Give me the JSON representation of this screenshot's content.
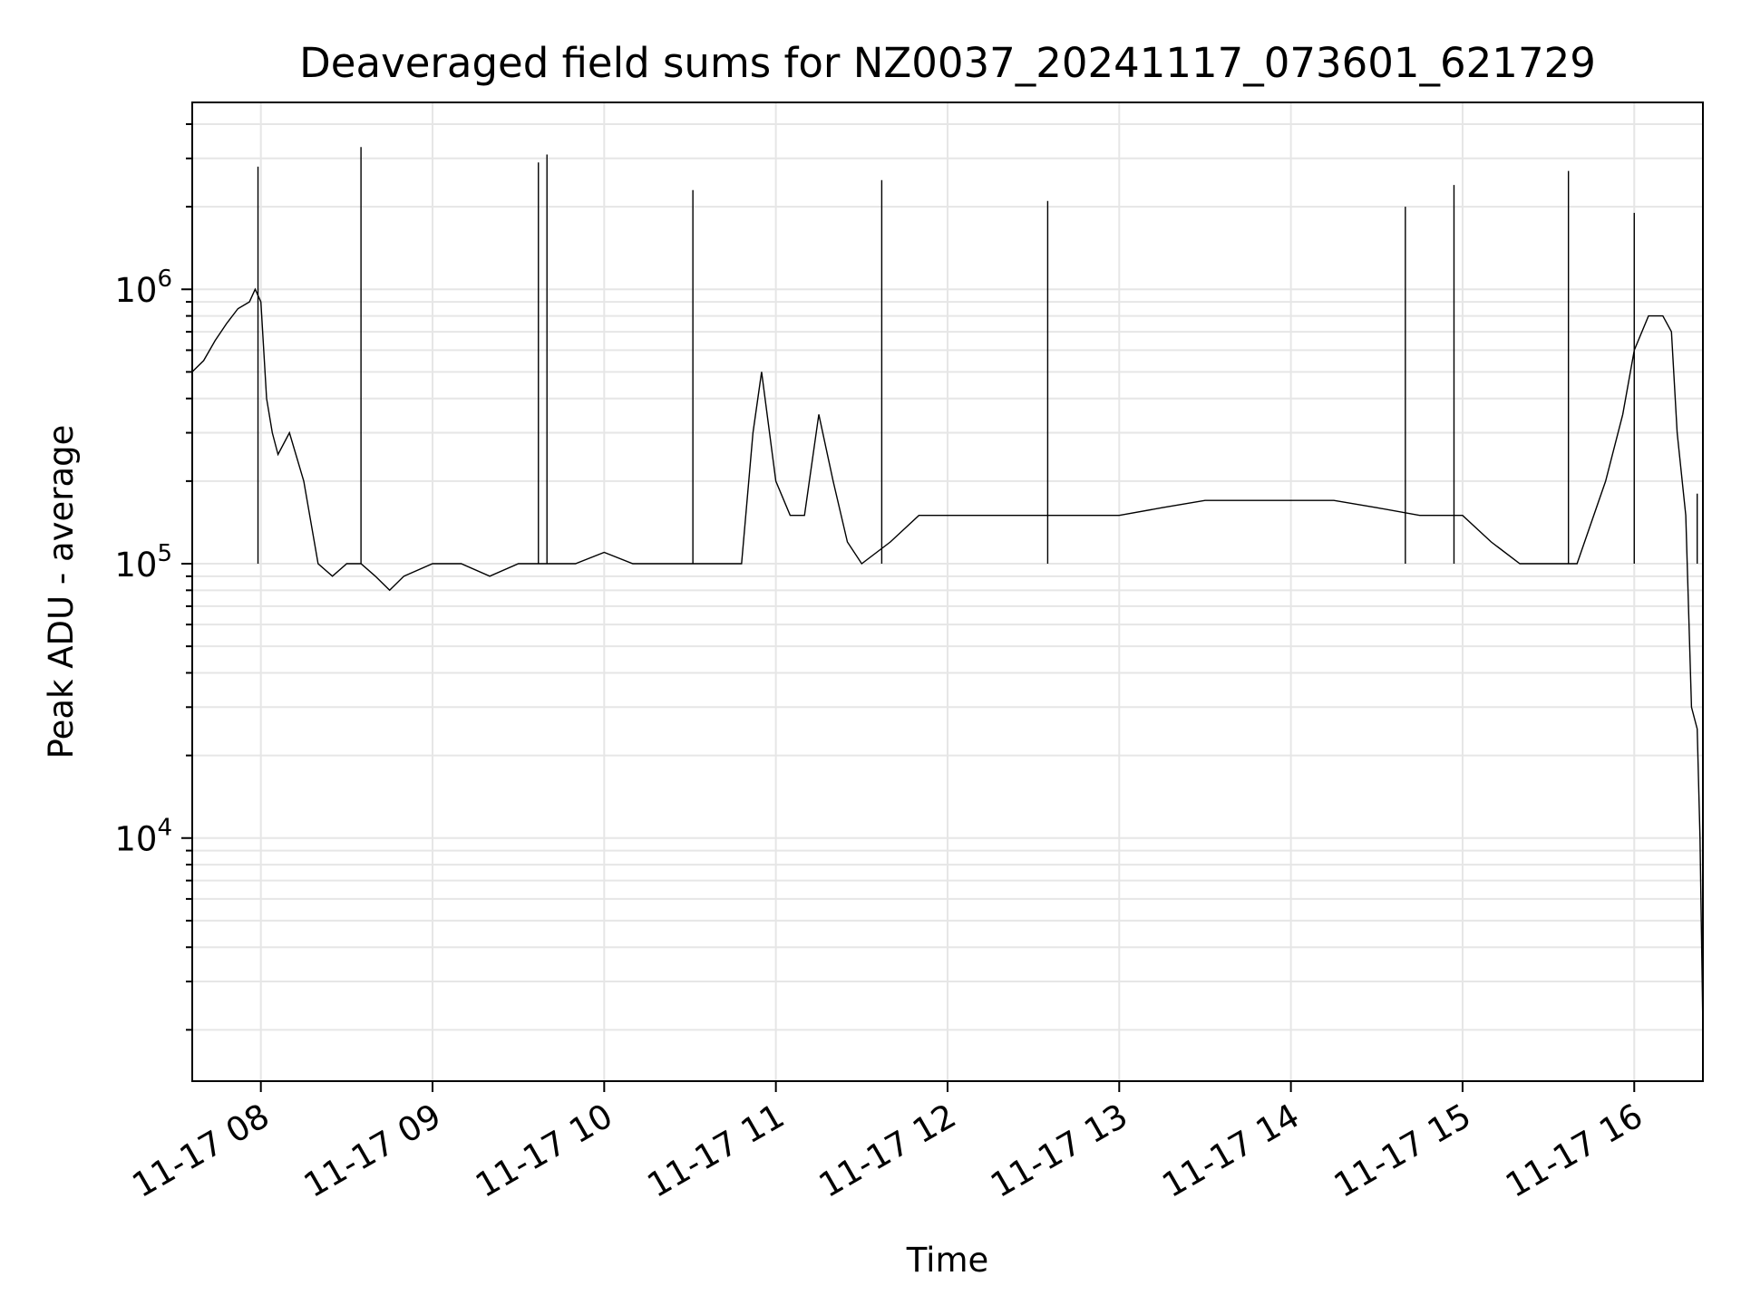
{
  "chart_data": {
    "type": "line",
    "title": "Deaveraged field sums for NZ0037_20241117_073601_621729",
    "xlabel": "Time",
    "ylabel": "Peak ADU - average",
    "yscale": "log",
    "ylim": [
      1300,
      4800000
    ],
    "xlim": [
      "2024-11-17T07:36:01",
      "2024-11-17T16:24:00"
    ],
    "grid": true,
    "legend": "none",
    "line_color": "#000000",
    "x_ticks": [
      "11-17 08",
      "11-17 09",
      "11-17 10",
      "11-17 11",
      "11-17 12",
      "11-17 13",
      "11-17 14",
      "11-17 15",
      "11-17 16"
    ],
    "y_ticks": [
      {
        "base": "10",
        "exp": "4",
        "value": 10000
      },
      {
        "base": "10",
        "exp": "5",
        "value": 100000
      },
      {
        "base": "10",
        "exp": "6",
        "value": 1000000
      }
    ],
    "series": [
      {
        "x": [
          "2024-11-17T07:36",
          "2024-11-17T07:40",
          "2024-11-17T07:44",
          "2024-11-17T07:48",
          "2024-11-17T07:52",
          "2024-11-17T07:56",
          "2024-11-17T07:58",
          "2024-11-17T08:00",
          "2024-11-17T08:02",
          "2024-11-17T08:04",
          "2024-11-17T08:06",
          "2024-11-17T08:10",
          "2024-11-17T08:15",
          "2024-11-17T08:20",
          "2024-11-17T08:25",
          "2024-11-17T08:30",
          "2024-11-17T08:35",
          "2024-11-17T08:40",
          "2024-11-17T08:45",
          "2024-11-17T08:50",
          "2024-11-17T09:00",
          "2024-11-17T09:10",
          "2024-11-17T09:20",
          "2024-11-17T09:30",
          "2024-11-17T09:40",
          "2024-11-17T09:50",
          "2024-11-17T10:00",
          "2024-11-17T10:10",
          "2024-11-17T10:20",
          "2024-11-17T10:30",
          "2024-11-17T10:40",
          "2024-11-17T10:48",
          "2024-11-17T10:52",
          "2024-11-17T10:55",
          "2024-11-17T11:00",
          "2024-11-17T11:05",
          "2024-11-17T11:10",
          "2024-11-17T11:15",
          "2024-11-17T11:20",
          "2024-11-17T11:25",
          "2024-11-17T11:30",
          "2024-11-17T11:40",
          "2024-11-17T11:50",
          "2024-11-17T12:00",
          "2024-11-17T12:15",
          "2024-11-17T12:30",
          "2024-11-17T12:45",
          "2024-11-17T13:00",
          "2024-11-17T13:15",
          "2024-11-17T13:30",
          "2024-11-17T13:45",
          "2024-11-17T14:00",
          "2024-11-17T14:15",
          "2024-11-17T14:30",
          "2024-11-17T14:45",
          "2024-11-17T15:00",
          "2024-11-17T15:10",
          "2024-11-17T15:20",
          "2024-11-17T15:30",
          "2024-11-17T15:40",
          "2024-11-17T15:50",
          "2024-11-17T15:56",
          "2024-11-17T16:00",
          "2024-11-17T16:05",
          "2024-11-17T16:10",
          "2024-11-17T16:13",
          "2024-11-17T16:15",
          "2024-11-17T16:18",
          "2024-11-17T16:20",
          "2024-11-17T16:22",
          "2024-11-17T16:23",
          "2024-11-17T16:24"
        ],
        "values": [
          500000,
          550000,
          650000,
          750000,
          850000,
          900000,
          1000000,
          900000,
          400000,
          300000,
          250000,
          300000,
          200000,
          100000,
          90000,
          100000,
          100000,
          90000,
          80000,
          90000,
          100000,
          100000,
          90000,
          100000,
          100000,
          100000,
          110000,
          100000,
          100000,
          100000,
          100000,
          100000,
          300000,
          500000,
          200000,
          150000,
          150000,
          350000,
          200000,
          120000,
          100000,
          120000,
          150000,
          150000,
          150000,
          150000,
          150000,
          150000,
          160000,
          170000,
          170000,
          170000,
          170000,
          160000,
          150000,
          150000,
          120000,
          100000,
          100000,
          100000,
          200000,
          350000,
          600000,
          800000,
          800000,
          700000,
          300000,
          150000,
          30000,
          25000,
          10000,
          2000
        ],
        "spikes": {
          "x": [
            "2024-11-17T07:59",
            "2024-11-17T08:35",
            "2024-11-17T09:37",
            "2024-11-17T09:40",
            "2024-11-17T10:31",
            "2024-11-17T11:37",
            "2024-11-17T12:35",
            "2024-11-17T14:40",
            "2024-11-17T14:57",
            "2024-11-17T15:37",
            "2024-11-17T16:00",
            "2024-11-17T16:22"
          ],
          "values": [
            2800000,
            3300000,
            2900000,
            3100000,
            2300000,
            2500000,
            2100000,
            2000000,
            2400000,
            2700000,
            1900000,
            180000
          ]
        }
      }
    ]
  }
}
